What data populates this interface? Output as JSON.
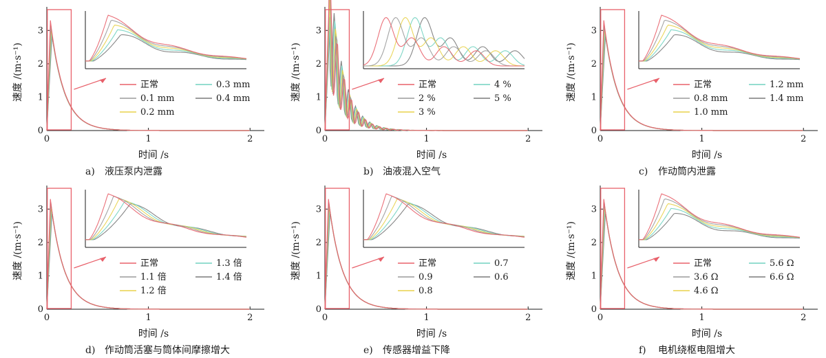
{
  "chart_data": [
    {
      "type": "line",
      "panel": "a",
      "caption_letter": "a)",
      "caption_text": "液压泵内泄露",
      "xlabel": "时间 /s",
      "ylabel": "速度 /(m·s⁻¹)",
      "xlim": [
        0,
        2.1
      ],
      "ylim": [
        0,
        3.5
      ],
      "xticks": [
        "0",
        "1",
        "2"
      ],
      "yticks": [
        "0",
        "1",
        "2",
        "3"
      ],
      "series": [
        {
          "name": "正常",
          "color": "#e8606a",
          "peak": 3.3
        },
        {
          "name": "0.1 mm",
          "color": "#9a9a9a",
          "peak": 3.15
        },
        {
          "name": "0.2 mm",
          "color": "#e8d24a",
          "peak": 3.05
        },
        {
          "name": "0.3 mm",
          "color": "#70d2c0",
          "peak": 2.95
        },
        {
          "name": "0.4 mm",
          "color": "#7a7a7a",
          "peak": 2.85
        }
      ],
      "inset_style": "spread"
    },
    {
      "type": "line",
      "panel": "b",
      "caption_letter": "b)",
      "caption_text": "油液混入空气",
      "xlabel": "时间 /s",
      "ylabel": "速度 /(m·s⁻¹)",
      "xlim": [
        0,
        2.1
      ],
      "ylim": [
        0,
        3.5
      ],
      "xticks": [
        "0",
        "1",
        "2"
      ],
      "yticks": [
        "0",
        "1",
        "2",
        "3"
      ],
      "series": [
        {
          "name": "正常",
          "color": "#e8606a",
          "peak": 3.3
        },
        {
          "name": "2 %",
          "color": "#9a9a9a",
          "peak": 3.25
        },
        {
          "name": "3 %",
          "color": "#e8d24a",
          "peak": 3.2
        },
        {
          "name": "4 %",
          "color": "#70d2c0",
          "peak": 3.15
        },
        {
          "name": "5 %",
          "color": "#7a7a7a",
          "peak": 3.1
        }
      ],
      "inset_style": "oscillating"
    },
    {
      "type": "line",
      "panel": "c",
      "caption_letter": "c)",
      "caption_text": "作动筒内泄露",
      "xlabel": "时间 /s",
      "ylabel": "速度 /(m·s⁻¹)",
      "xlim": [
        0,
        2.1
      ],
      "ylim": [
        0,
        3.5
      ],
      "xticks": [
        "0",
        "1",
        "2"
      ],
      "yticks": [
        "0",
        "1",
        "2",
        "3"
      ],
      "series": [
        {
          "name": "正常",
          "color": "#e8606a",
          "peak": 3.3
        },
        {
          "name": "0.8 mm",
          "color": "#9a9a9a",
          "peak": 3.15
        },
        {
          "name": "1.0 mm",
          "color": "#e8d24a",
          "peak": 3.05
        },
        {
          "name": "1.2 mm",
          "color": "#70d2c0",
          "peak": 2.95
        },
        {
          "name": "1.4 mm",
          "color": "#7a7a7a",
          "peak": 2.85
        }
      ],
      "inset_style": "spread"
    },
    {
      "type": "line",
      "panel": "d",
      "caption_letter": "d)",
      "caption_text": "作动筒活塞与筒体间摩擦增大",
      "xlabel": "时间 /s",
      "ylabel": "速度 /(m·s⁻¹)",
      "xlim": [
        0,
        2.1
      ],
      "ylim": [
        0,
        3.5
      ],
      "xticks": [
        "0",
        "1",
        "2"
      ],
      "yticks": [
        "0",
        "1",
        "2",
        "3"
      ],
      "series": [
        {
          "name": "正常",
          "color": "#e8606a",
          "peak": 3.3
        },
        {
          "name": "1.1 倍",
          "color": "#9a9a9a",
          "peak": 3.2
        },
        {
          "name": "1.2 倍",
          "color": "#e8d24a",
          "peak": 3.1
        },
        {
          "name": "1.3 倍",
          "color": "#70d2c0",
          "peak": 3.0
        },
        {
          "name": "1.4 倍",
          "color": "#7a7a7a",
          "peak": 2.9
        }
      ],
      "inset_style": "shifted"
    },
    {
      "type": "line",
      "panel": "e",
      "caption_letter": "e)",
      "caption_text": "传感器增益下降",
      "xlabel": "时间 /s",
      "ylabel": "速度 /(m·s⁻¹)",
      "xlim": [
        0,
        2.1
      ],
      "ylim": [
        0,
        3.5
      ],
      "xticks": [
        "0",
        "1",
        "2"
      ],
      "yticks": [
        "0",
        "1",
        "2",
        "3"
      ],
      "series": [
        {
          "name": "正常",
          "color": "#e8606a",
          "peak": 3.3
        },
        {
          "name": "0.9",
          "color": "#9a9a9a",
          "peak": 3.2
        },
        {
          "name": "0.8",
          "color": "#e8d24a",
          "peak": 3.1
        },
        {
          "name": "0.7",
          "color": "#70d2c0",
          "peak": 3.0
        },
        {
          "name": "0.6",
          "color": "#7a7a7a",
          "peak": 2.9
        }
      ],
      "inset_style": "shifted"
    },
    {
      "type": "line",
      "panel": "f",
      "caption_letter": "f)",
      "caption_text": "电机绕枢电阻增大",
      "xlabel": "时间 /s",
      "ylabel": "速度 /(m·s⁻¹)",
      "xlim": [
        0,
        2.1
      ],
      "ylim": [
        0,
        3.5
      ],
      "xticks": [
        "0",
        "1",
        "2"
      ],
      "yticks": [
        "0",
        "1",
        "2",
        "3"
      ],
      "series": [
        {
          "name": "正常",
          "color": "#e8606a",
          "peak": 3.3
        },
        {
          "name": "3.6 Ω",
          "color": "#9a9a9a",
          "peak": 3.2
        },
        {
          "name": "4.6 Ω",
          "color": "#e8d24a",
          "peak": 3.1
        },
        {
          "name": "5.6 Ω",
          "color": "#70d2c0",
          "peak": 3.0
        },
        {
          "name": "6.6 Ω",
          "color": "#7a7a7a",
          "peak": 2.9
        }
      ],
      "inset_style": "spread"
    }
  ],
  "colors": {
    "zoom_box": "#e8606a",
    "axis": "#1a1a1a"
  }
}
